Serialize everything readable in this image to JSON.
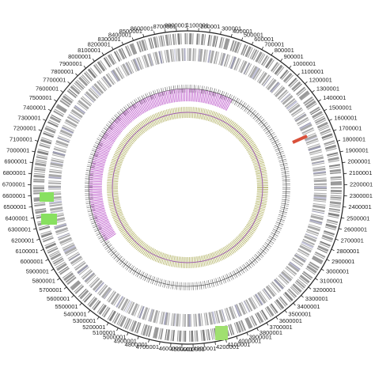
{
  "chart_data": {
    "type": "circular-genome",
    "xlim": [
      0,
      8900000
    ],
    "xticks": [
      1,
      100001,
      200001,
      300001,
      400001,
      500001,
      600001,
      700001,
      800001,
      900001,
      1000001,
      1100001,
      1200001,
      1300001,
      1400001,
      1500001,
      1600001,
      1700001,
      1800001,
      1900001,
      2000001,
      2100001,
      2200001,
      2300001,
      2400001,
      2500001,
      2600001,
      2700001,
      2800001,
      2900001,
      3000001,
      3100001,
      3200001,
      3300001,
      3400001,
      3500001,
      3600001,
      3700001,
      3800001,
      3900001,
      4000001,
      4100001,
      4200001,
      4300001,
      4400001,
      4500001,
      4600001,
      4700001,
      4800001,
      4900001,
      5000001,
      5100001,
      5200001,
      5300001,
      5400001,
      5500001,
      5600001,
      5700001,
      5800001,
      5900001,
      6000001,
      6100001,
      6200001,
      6300001,
      6400001,
      6500001,
      6600001,
      6700001,
      6800001,
      6900001,
      7000001,
      7100001,
      7200001,
      7300001,
      7400001,
      7500001,
      7600001,
      7700001,
      7800001,
      7900001,
      8000001,
      8100001,
      8200001,
      8300001,
      8400001,
      8500001,
      8600001,
      8700001,
      8800001
    ]
  }
}
